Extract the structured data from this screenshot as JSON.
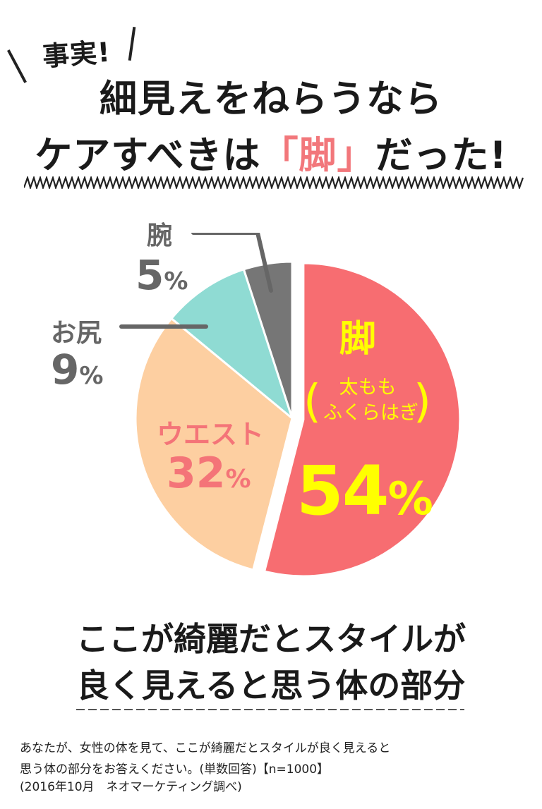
{
  "tag": "事実!",
  "headline": {
    "line1": "細見えをねらうなら",
    "line2_pre": "ケアすべきは",
    "line2_mark": "「脚」",
    "line2_post": "だった!"
  },
  "chart_data": {
    "type": "pie",
    "slices": [
      {
        "label": "脚",
        "sublabel_1": "太もも",
        "sublabel_2": "ふくらはぎ",
        "value": 54,
        "value_text": "54",
        "color": "#f76d71",
        "exploded": true
      },
      {
        "label": "ウエスト",
        "value": 32,
        "value_text": "32",
        "color": "#fdcfa1"
      },
      {
        "label": "お尻",
        "value": 9,
        "value_text": "9",
        "color": "#8fdbd3"
      },
      {
        "label": "腕",
        "value": 5,
        "value_text": "5",
        "color": "#767676"
      }
    ],
    "unit": "%",
    "paren_open": "(",
    "paren_close": ")"
  },
  "caption": {
    "line1": "ここが綺麗だとスタイルが",
    "line2": "良く見えると思う体の部分"
  },
  "notes": {
    "line1": "あなたが、女性の体を見て、ここが綺麗だとスタイルが良く見えると",
    "line2": "思う体の部分をお答えください。(単数回答)【n=1000】",
    "line3": "(2016年10月　ネオマーケティング調べ)"
  },
  "colors": {
    "leg": "#f76d71",
    "waist": "#fdcfa1",
    "hip": "#8fdbd3",
    "arm": "#767676",
    "highlight": "#ffff00",
    "title_accent": "#f2777b"
  }
}
